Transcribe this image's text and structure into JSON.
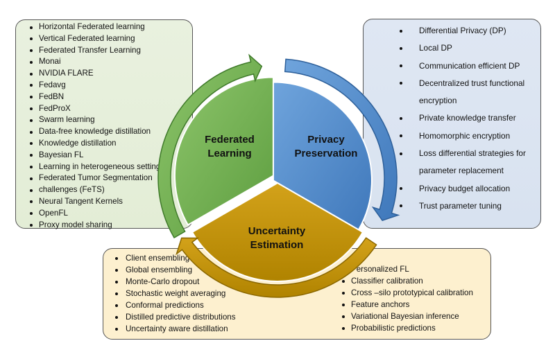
{
  "federated_learning": {
    "title_line1": "Federated",
    "title_line2": "Learning",
    "color": "#6aa84f",
    "items": [
      "Horizontal Federated learning",
      "Vertical Federated learning",
      "Federated Transfer Learning",
      "Monai",
      "NVIDIA FLARE",
      "Fedavg",
      "FedBN",
      "FedProX",
      "Swarm learning",
      "Data-free knowledge distillation",
      "Knowledge distillation",
      "Bayesian FL",
      "Learning in heterogeneous settings",
      "Federated Tumor Segmentation",
      "challenges (FeTS)",
      "Neural Tangent Kernels",
      "OpenFL",
      "Proxy model sharing"
    ]
  },
  "privacy_preservation": {
    "title_line1": "Privacy",
    "title_line2": "Preservation",
    "color": "#4a86c8",
    "items": [
      "Differential Privacy (DP)",
      "Local DP",
      "Communication efficient DP",
      "Decentralized trust functional encryption",
      "Private knowledge transfer",
      "Homomorphic encryption",
      "Loss differential strategies for parameter replacement",
      "Privacy budget allocation",
      "Trust parameter tuning"
    ]
  },
  "uncertainty_estimation": {
    "title_line1": "Uncertainty",
    "title_line2": "Estimation",
    "color": "#bf9000",
    "items_left": [
      "Client ensembling",
      "Global ensembling",
      "Monte-Carlo dropout",
      "Stochastic weight averaging",
      "Conformal predictions",
      "Distilled predictive distributions",
      "Uncertainty aware distillation"
    ],
    "items_right": [
      "Personalized FL",
      "Classifier calibration",
      "Cross –silo prototypical calibration",
      "Feature anchors",
      "Variational Bayesian inference",
      "Probabilistic predictions"
    ]
  }
}
